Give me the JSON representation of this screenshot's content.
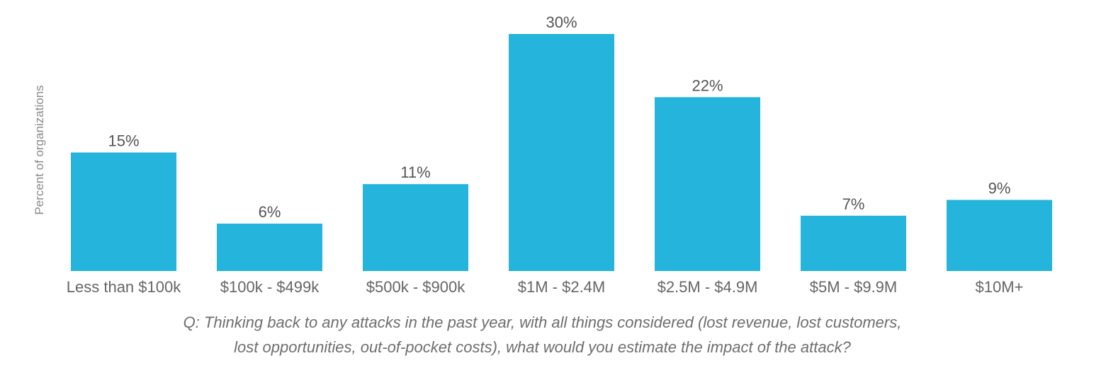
{
  "chart_data": {
    "type": "bar",
    "ylabel": "Percent of organizations",
    "categories": [
      "Less than $100k",
      "$100k - $499k",
      "$500k - $900k",
      "$1M - $2.4M",
      "$2.5M - $4.9M",
      "$5M - $9.9M",
      "$10M+"
    ],
    "values": [
      15,
      6,
      11,
      30,
      22,
      7,
      9
    ],
    "value_labels": [
      "15%",
      "6%",
      "11%",
      "30%",
      "22%",
      "7%",
      "9%"
    ],
    "ylim": [
      0,
      30
    ],
    "grid": false,
    "legend": "none",
    "bar_color": "#25b4db"
  },
  "question": {
    "line1": "Q: Thinking back to any attacks in the past year, with all things considered (lost revenue, lost customers,",
    "line2": "lost opportunities, out-of-pocket costs), what would you estimate the impact of the attack?"
  }
}
